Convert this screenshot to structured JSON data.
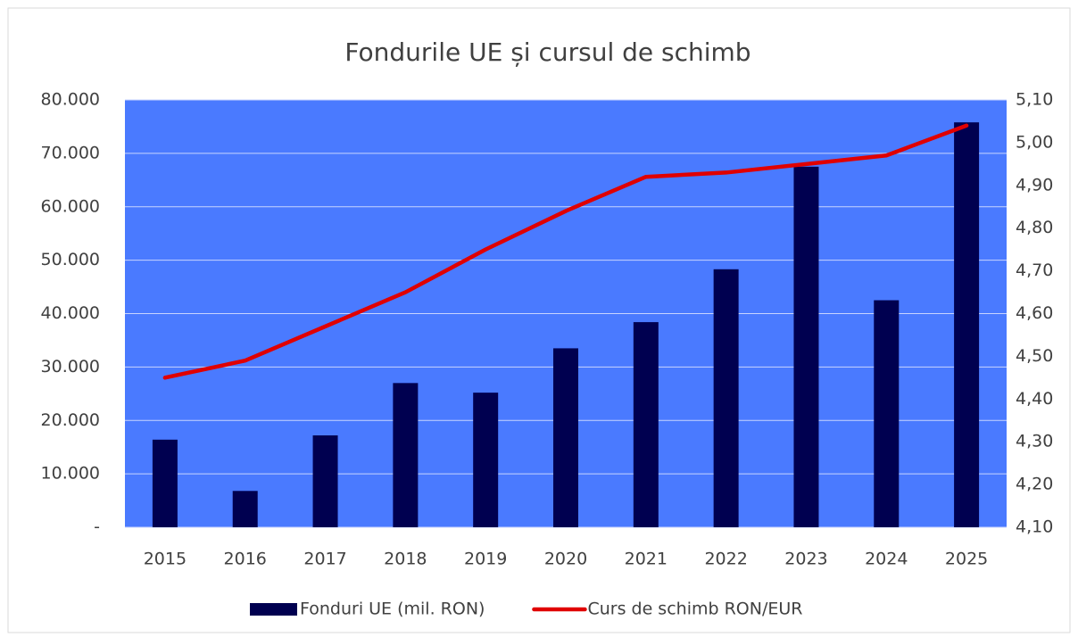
{
  "chart_data": {
    "type": "bar",
    "title": "Fondurile UE și cursul de schimb",
    "categories": [
      "2015",
      "2016",
      "2017",
      "2018",
      "2019",
      "2020",
      "2021",
      "2022",
      "2023",
      "2024",
      "2025"
    ],
    "series": [
      {
        "name": "Fonduri UE (mil. RON)",
        "type": "bar",
        "color": "#000050",
        "values": [
          16400,
          6800,
          17200,
          27000,
          25200,
          33500,
          38400,
          48300,
          67500,
          42500,
          75800
        ]
      },
      {
        "name": "Curs de schimb RON/EUR",
        "type": "line",
        "axis": "y2",
        "color": "#e00000",
        "values": [
          4.45,
          4.49,
          4.57,
          4.65,
          4.75,
          4.84,
          4.92,
          4.93,
          4.95,
          4.97,
          5.04
        ]
      }
    ],
    "ylim": [
      0,
      80000
    ],
    "yticks": [
      {
        "value": 0,
        "label": "-"
      },
      {
        "value": 10000,
        "label": "10.000"
      },
      {
        "value": 20000,
        "label": "20.000"
      },
      {
        "value": 30000,
        "label": "30.000"
      },
      {
        "value": 40000,
        "label": "40.000"
      },
      {
        "value": 50000,
        "label": "50.000"
      },
      {
        "value": 60000,
        "label": "60.000"
      },
      {
        "value": 70000,
        "label": "70.000"
      },
      {
        "value": 80000,
        "label": "80.000"
      }
    ],
    "y2lim": [
      4.1,
      5.1
    ],
    "y2ticks": [
      {
        "value": 4.1,
        "label": "4,10"
      },
      {
        "value": 4.2,
        "label": "4,20"
      },
      {
        "value": 4.3,
        "label": "4,30"
      },
      {
        "value": 4.4,
        "label": "4,40"
      },
      {
        "value": 4.5,
        "label": "4,50"
      },
      {
        "value": 4.6,
        "label": "4,60"
      },
      {
        "value": 4.7,
        "label": "4,70"
      },
      {
        "value": 4.8,
        "label": "4,80"
      },
      {
        "value": 4.9,
        "label": "4,90"
      },
      {
        "value": 5.0,
        "label": "5,00"
      },
      {
        "value": 5.1,
        "label": "5,10"
      }
    ],
    "grid": true,
    "plot_background": "#4a7aff",
    "legend": "bottom"
  }
}
